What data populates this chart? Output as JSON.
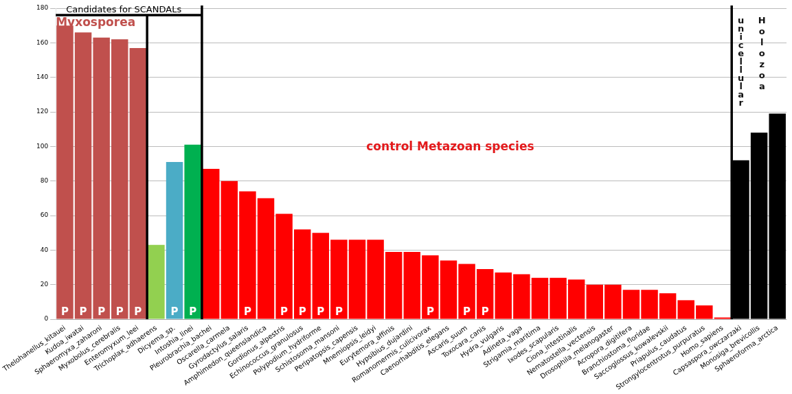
{
  "chart_data": {
    "type": "bar",
    "categories": [
      "Thelohanellus_kitauei",
      "Kudoa_iwatai",
      "Sphaeromyxa_zaharoni",
      "Myxobolus_cerebralis",
      "Enteromyxum_leei",
      "Trichoplax_adhaerens",
      "Dicyema_sp.",
      "Intoshia_linei",
      "Pleurobrachia_bachei",
      "Oscarella_carmela",
      "Gyrodactylus_salaris",
      "Amphimedon_queenslandica",
      "Gordionus_alpestris",
      "Echinococcus_granulosus",
      "Polypodium_hydriforme",
      "Schistosoma_mansoni",
      "Peripatopsis_capensis",
      "Mnemiopsis_leidyi",
      "Eurytemora_affinis",
      "Hypsibius_dujardini",
      "Romanomermis_culicivorax",
      "Caenorhabditis_elegans",
      "Ascaris_suum",
      "Toxocara_canis",
      "Hydra_vulgaris",
      "Adineta_vaga",
      "Strigamia_maritima",
      "Ixodes_scapularis",
      "Ciona_intestinalis",
      "Nematostella_vectensis",
      "Drosophila_melanogaster",
      "Acropora_digitifera",
      "Branchiostoma_floridae",
      "Saccoglossus_kowalevskii",
      "Priapulus_caudatus",
      "Strongylocentrotus_purpuratus",
      "Homo_sapiens",
      "Capsaspora_owczarzaki",
      "Monosiga_brevicollis",
      "Sphaeroforma_arctica"
    ],
    "values": [
      170,
      166,
      163,
      162,
      157,
      43,
      91,
      101,
      87,
      80,
      74,
      70,
      61,
      52,
      50,
      46,
      46,
      46,
      39,
      39,
      37,
      34,
      32,
      29,
      27,
      26,
      24,
      24,
      23,
      20,
      20,
      17,
      17,
      15,
      11,
      8,
      1,
      92,
      108,
      119
    ],
    "colors": [
      "#c0504d",
      "#c0504d",
      "#c0504d",
      "#c0504d",
      "#c0504d",
      "#92d050",
      "#4bacc6",
      "#00b050",
      "#ff0000",
      "#ff0000",
      "#ff0000",
      "#ff0000",
      "#ff0000",
      "#ff0000",
      "#ff0000",
      "#ff0000",
      "#ff0000",
      "#ff0000",
      "#ff0000",
      "#ff0000",
      "#ff0000",
      "#ff0000",
      "#ff0000",
      "#ff0000",
      "#ff0000",
      "#ff0000",
      "#ff0000",
      "#ff0000",
      "#ff0000",
      "#ff0000",
      "#ff0000",
      "#ff0000",
      "#ff0000",
      "#ff0000",
      "#ff0000",
      "#ff0000",
      "#ff0000",
      "#000000",
      "#000000",
      "#000000"
    ],
    "value_labels": [
      "P",
      "P",
      "P",
      "P",
      "P",
      null,
      "P",
      "P",
      null,
      null,
      "P",
      null,
      "P",
      "P",
      "P",
      "P",
      null,
      null,
      null,
      null,
      "P",
      null,
      "P",
      "P",
      null,
      null,
      null,
      null,
      null,
      null,
      null,
      null,
      null,
      null,
      null,
      null,
      null,
      null,
      null,
      null
    ],
    "ylim": [
      0,
      180
    ],
    "yticks": [
      0,
      20,
      40,
      60,
      80,
      100,
      120,
      140,
      160,
      180
    ],
    "grid": "y",
    "annotations": [
      "Candidates for SCANDALs",
      "Myxosporea",
      "control Metazoan species",
      "unicellular",
      "Holozoa"
    ]
  }
}
